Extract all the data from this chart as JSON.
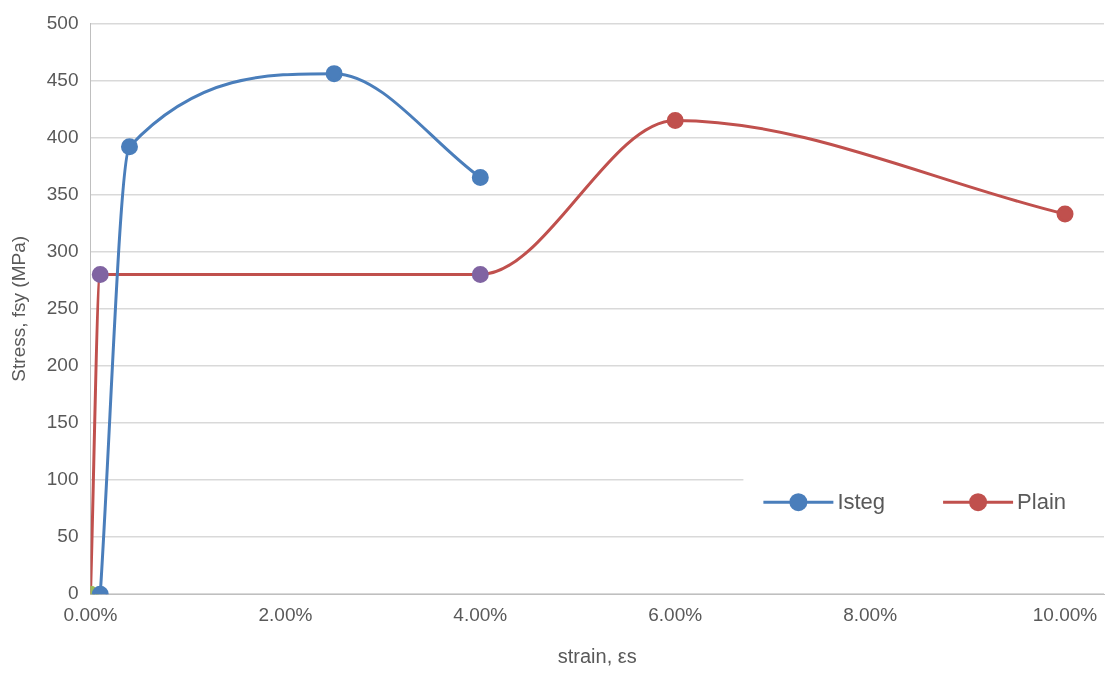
{
  "chart_data": {
    "type": "line",
    "xlabel": "strain, εs",
    "ylabel": "Stress, fsy (MPa)",
    "xlim": [
      0,
      0.104
    ],
    "xticks": [
      {
        "value": 0,
        "label": "0.00%"
      },
      {
        "value": 0.02,
        "label": "2.00%"
      },
      {
        "value": 0.04,
        "label": "4.00%"
      },
      {
        "value": 0.06,
        "label": "6.00%"
      },
      {
        "value": 0.08,
        "label": "8.00%"
      },
      {
        "value": 0.1,
        "label": "10.00%"
      }
    ],
    "ylim": [
      0,
      500
    ],
    "yticks": [
      0,
      50,
      100,
      150,
      200,
      250,
      300,
      350,
      400,
      450,
      500
    ],
    "series": [
      {
        "name": "Isteg",
        "color": "#4a7ebb",
        "x": [
          0.001,
          0.004,
          0.025,
          0.04
        ],
        "values": [
          0,
          392,
          456,
          365
        ]
      },
      {
        "name": "Plain",
        "color": "#c0504d",
        "x": [
          0,
          0.001,
          0.04,
          0.06,
          0.1
        ],
        "values": [
          0,
          280,
          280,
          415,
          333
        ],
        "colors": [
          "#9bbb59",
          "#8064a2",
          "#8064a2",
          "#c0504d",
          "#c0504d"
        ]
      }
    ],
    "grid": "y",
    "legend": "bottom right",
    "marker": "circle",
    "line_style": "solid"
  }
}
